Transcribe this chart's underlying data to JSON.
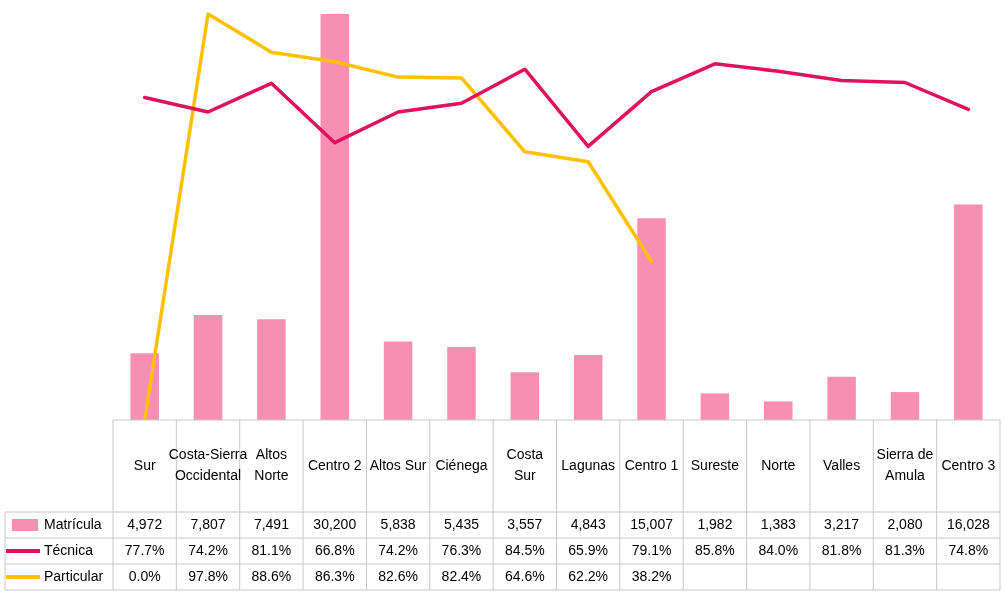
{
  "chart_data": {
    "type": "bar",
    "categories": [
      "Sur",
      "Costa-Sierra Occidental",
      "Altos Norte",
      "Centro 2",
      "Altos Sur",
      "Ciénega",
      "Costa Sur",
      "Lagunas",
      "Centro 1",
      "Sureste",
      "Norte",
      "Valles",
      "Sierra de Amula",
      "Centro 3"
    ],
    "series": [
      {
        "name": "Matrícula",
        "color": "#f78fb3",
        "values": [
          4972,
          7807,
          7491,
          30200,
          5838,
          5435,
          3557,
          4843,
          15007,
          1982,
          1383,
          3217,
          2080,
          16028
        ],
        "value_labels": [
          "4,972",
          "7,807",
          "7,491",
          "30,200",
          "5,838",
          "5,435",
          "3,557",
          "4,843",
          "15,007",
          "1,982",
          "1,383",
          "3,217",
          "2,080",
          "16,028"
        ]
      },
      {
        "name": "Técnica",
        "type": "line",
        "axis": "y2",
        "color": "#e0115f",
        "values": [
          77.7,
          74.2,
          81.1,
          66.8,
          74.2,
          76.3,
          84.5,
          65.9,
          79.1,
          85.8,
          84.0,
          81.8,
          81.3,
          74.8
        ],
        "value_labels": [
          "77.7%",
          "74.2%",
          "81.1%",
          "66.8%",
          "74.2%",
          "76.3%",
          "84.5%",
          "65.9%",
          "79.1%",
          "85.8%",
          "84.0%",
          "81.8%",
          "81.3%",
          "74.8%"
        ]
      },
      {
        "name": "Particular",
        "type": "line",
        "axis": "y2",
        "color": "#ffc000",
        "values": [
          0.0,
          97.8,
          88.6,
          86.3,
          82.6,
          82.4,
          64.6,
          62.2,
          38.2,
          null,
          null,
          null,
          null,
          null
        ],
        "value_labels": [
          "0.0%",
          "97.8%",
          "88.6%",
          "86.3%",
          "82.6%",
          "82.4%",
          "64.6%",
          "62.2%",
          "38.2%",
          null,
          null,
          null,
          null,
          null
        ]
      }
    ],
    "legend": "bottom",
    "marker": "none",
    "line_style": "solid"
  }
}
